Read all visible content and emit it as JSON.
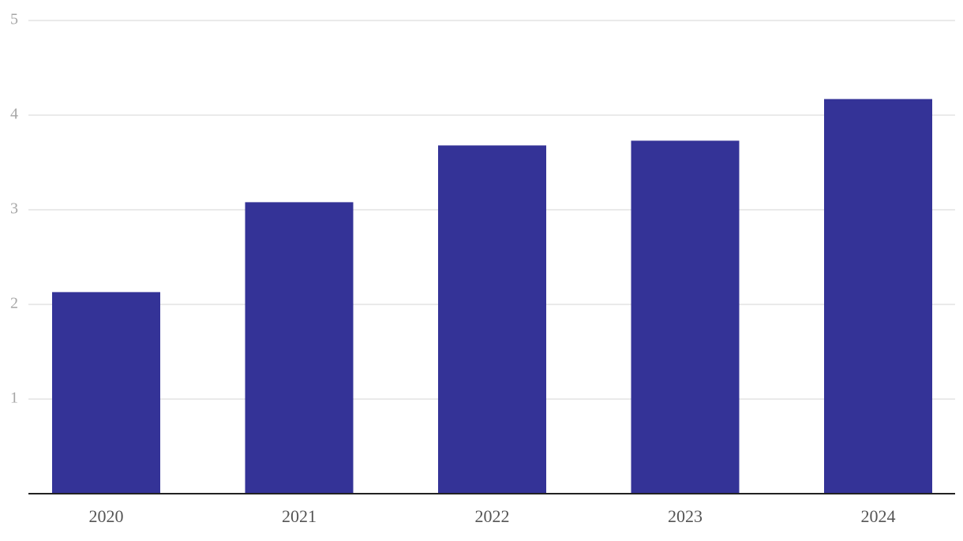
{
  "chart_data": {
    "type": "bar",
    "categories": [
      "2020",
      "2021",
      "2022",
      "2023",
      "2024"
    ],
    "values": [
      2.13,
      3.08,
      3.68,
      3.73,
      4.17
    ],
    "color": "#343397",
    "ylim": [
      0,
      5
    ],
    "yticks": [
      1,
      2,
      3,
      4,
      5
    ],
    "grid": true
  }
}
